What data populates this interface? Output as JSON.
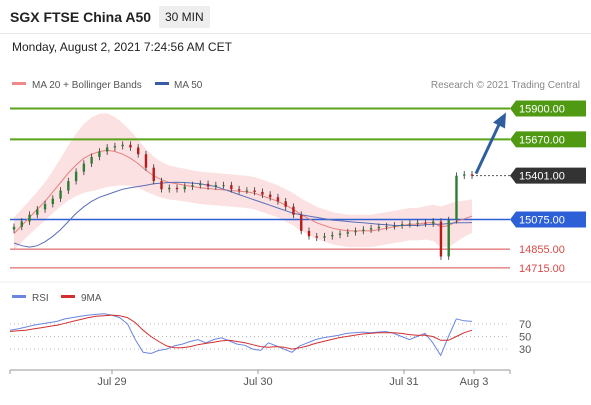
{
  "header": {
    "title": "SGX FTSE China A50",
    "timeframe": "30 MIN"
  },
  "datetime": "Monday, August 2, 2021 7:24:56 AM CET",
  "legend": {
    "bollinger": "MA 20 + Bollinger Bands",
    "ma50": "MA 50",
    "rsi": "RSI",
    "rsi_ma": "9MA"
  },
  "copyright": "Research © 2021 Trading Central",
  "colors": {
    "up": "#2e7d32",
    "down": "#b71c1c",
    "band": "#f8c9c9",
    "ma20": "#e88080",
    "ma50": "#5a6fb8",
    "resistance": "#5ba319",
    "pivot": "#2d5fd6",
    "support": "#d94a4a",
    "current": "#333333",
    "arrow": "#2f5f9e",
    "rsi": "#6b86e0",
    "rsi_ma": "#d32f2f"
  },
  "chart_data": [
    {
      "type": "candlestick",
      "ylim": [
        14640,
        16000
      ],
      "x_ticks": [
        "Jul 29",
        "Jul 30",
        "Jul 31",
        "Aug 3"
      ],
      "levels": [
        {
          "label": "15900.00",
          "value": 15900,
          "kind": "resistance"
        },
        {
          "label": "15670.00",
          "value": 15670,
          "kind": "resistance"
        },
        {
          "label": "15401.00",
          "value": 15401,
          "kind": "current"
        },
        {
          "label": "15075.00",
          "value": 15075,
          "kind": "pivot"
        },
        {
          "label": "14855.00",
          "value": 14855,
          "kind": "support"
        },
        {
          "label": "14715.00",
          "value": 14715,
          "kind": "support"
        }
      ],
      "close": [
        15020,
        15060,
        15110,
        15150,
        15190,
        15230,
        15290,
        15360,
        15430,
        15490,
        15540,
        15580,
        15610,
        15620,
        15630,
        15610,
        15560,
        15460,
        15360,
        15300,
        15310,
        15300,
        15320,
        15330,
        15340,
        15320,
        15330,
        15330,
        15300,
        15290,
        15290,
        15280,
        15260,
        15240,
        15210,
        15170,
        15110,
        14990,
        14950,
        14940,
        14950,
        14960,
        14970,
        14980,
        14990,
        15000,
        15010,
        15020,
        15025,
        15030,
        15040,
        15045,
        15050,
        15045,
        15060,
        14800,
        15070,
        15400,
        15410,
        15401
      ],
      "ma20": [
        14970,
        15030,
        15090,
        15150,
        15210,
        15280,
        15350,
        15420,
        15480,
        15530,
        15560,
        15580,
        15590,
        15580,
        15560,
        15530,
        15490,
        15440,
        15400,
        15370,
        15350,
        15340,
        15330,
        15320,
        15310,
        15305,
        15300,
        15295,
        15290,
        15285,
        15280,
        15270,
        15250,
        15230,
        15210,
        15180,
        15150,
        15110,
        15080,
        15050,
        15030,
        15010,
        15000,
        14990,
        14990,
        14990,
        14990,
        15000,
        15010,
        15020,
        15030,
        15040,
        15040,
        15050,
        15050,
        15020,
        15030,
        15060,
        15080,
        15100
      ],
      "ma50": [
        14900,
        14880,
        14870,
        14880,
        14910,
        14950,
        15000,
        15060,
        15120,
        15170,
        15210,
        15240,
        15260,
        15280,
        15300,
        15310,
        15320,
        15330,
        15340,
        15345,
        15350,
        15352,
        15350,
        15345,
        15340,
        15330,
        15320,
        15300,
        15280,
        15260,
        15240,
        15220,
        15200,
        15180,
        15160,
        15140,
        15120,
        15110,
        15100,
        15090,
        15080,
        15070,
        15065,
        15060,
        15055,
        15050,
        15045,
        15040,
        15035,
        15030,
        15030,
        15030,
        15030,
        15035,
        15040,
        15040,
        15045,
        15050,
        15050,
        15052
      ]
    },
    {
      "type": "line",
      "ylim": [
        0,
        100
      ],
      "y_ticks": [
        70,
        50,
        30
      ],
      "series": [
        {
          "name": "RSI",
          "values": [
            60,
            62,
            65,
            68,
            70,
            72,
            74,
            78,
            80,
            82,
            84,
            85,
            86,
            84,
            80,
            70,
            45,
            25,
            23,
            28,
            30,
            35,
            38,
            42,
            45,
            40,
            45,
            48,
            43,
            38,
            36,
            30,
            28,
            40,
            35,
            30,
            25,
            35,
            40,
            45,
            48,
            50,
            52,
            55,
            56,
            57,
            56,
            57,
            58,
            55,
            50,
            45,
            50,
            55,
            40,
            20,
            50,
            78,
            75,
            74
          ]
        },
        {
          "name": "9MA",
          "values": [
            58,
            59,
            60,
            62,
            64,
            66,
            68,
            71,
            74,
            77,
            80,
            82,
            83,
            84,
            83,
            80,
            72,
            60,
            50,
            42,
            35,
            32,
            32,
            34,
            37,
            39,
            41,
            43,
            44,
            42,
            40,
            37,
            34,
            33,
            34,
            33,
            30,
            32,
            35,
            39,
            42,
            45,
            48,
            50,
            52,
            54,
            55,
            56,
            56,
            56,
            55,
            53,
            52,
            52,
            50,
            44,
            44,
            50,
            56,
            60
          ]
        }
      ]
    }
  ]
}
